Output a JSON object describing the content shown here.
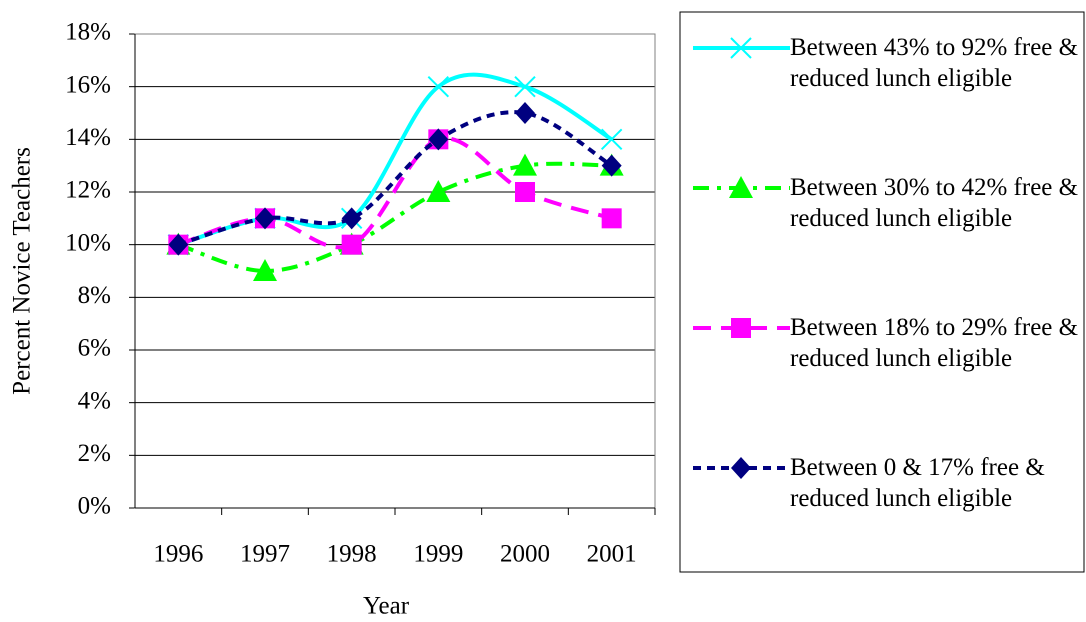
{
  "chart_data": {
    "type": "line",
    "x_label": "Year",
    "y_label": "Percent Novice Teachers",
    "categories": [
      "1996",
      "1997",
      "1998",
      "1999",
      "2000",
      "2001"
    ],
    "series": [
      {
        "name": "Between 43% to 92% free & reduced lunch eligible",
        "color": "#00ffff",
        "marker": "x",
        "dash": "solid",
        "values": [
          10,
          11,
          11,
          16,
          16,
          14
        ]
      },
      {
        "name": "Between 30% to 42% free & reduced lunch eligible",
        "color": "#00ff00",
        "marker": "triangle",
        "dash": "dashdot",
        "values": [
          10,
          9,
          10,
          12,
          13,
          13
        ]
      },
      {
        "name": "Between 18% to 29% free & reduced lunch eligible",
        "color": "#ff00ff",
        "marker": "square",
        "dash": "dashed",
        "values": [
          10,
          11,
          10,
          14,
          12,
          11
        ]
      },
      {
        "name": "Between 0 & 17% free & reduced lunch eligible",
        "color": "#000080",
        "marker": "diamond",
        "dash": "dotted",
        "values": [
          10,
          11,
          11,
          14,
          15,
          13
        ]
      }
    ],
    "ylim": [
      0,
      18
    ],
    "yticks": [
      {
        "value": 0,
        "label": "0%"
      },
      {
        "value": 2,
        "label": "2%"
      },
      {
        "value": 4,
        "label": "4%"
      },
      {
        "value": 6,
        "label": "6%"
      },
      {
        "value": 8,
        "label": "8%"
      },
      {
        "value": 10,
        "label": "10%"
      },
      {
        "value": 12,
        "label": "12%"
      },
      {
        "value": 14,
        "label": "14%"
      },
      {
        "value": 16,
        "label": "16%"
      },
      {
        "value": 18,
        "label": "18%"
      }
    ],
    "grid": true,
    "legend": "right"
  }
}
